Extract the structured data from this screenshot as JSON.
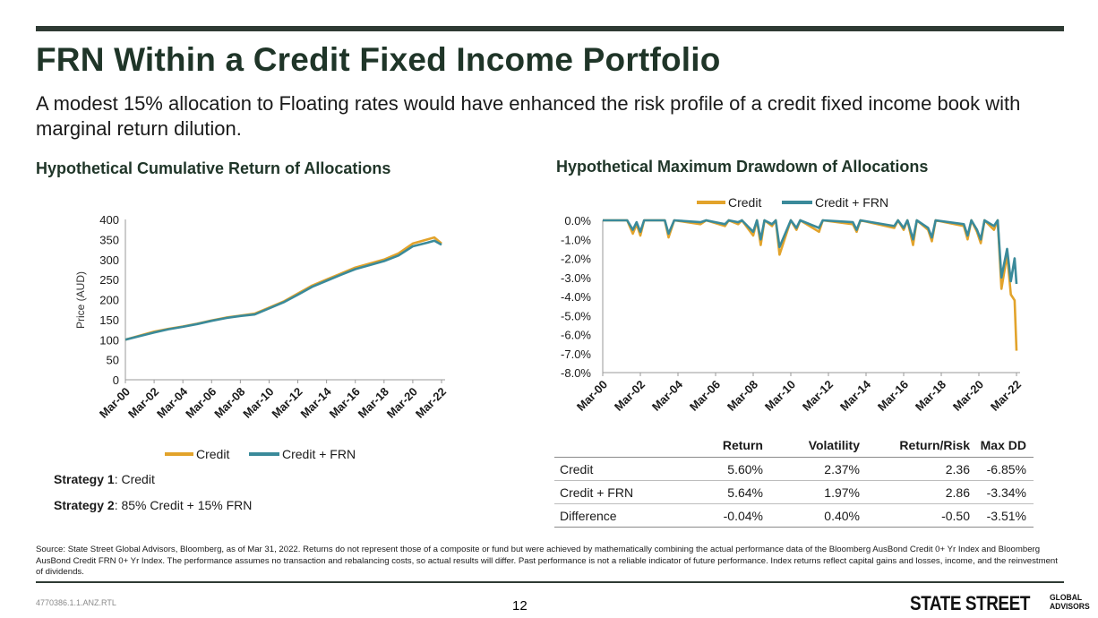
{
  "header": {
    "title": "FRN Within a Credit Fixed Income Portfolio",
    "subtitle": "A modest 15% allocation to Floating rates would have enhanced the risk profile of a credit fixed income book with marginal return dilution."
  },
  "colors": {
    "credit": "#e2a32b",
    "credit_frn": "#3a8a9a",
    "title": "#1f3528",
    "rule": "#2e3a33"
  },
  "chart_data": [
    {
      "type": "line",
      "title": "Hypothetical Cumulative Return of Allocations",
      "ylabel": "Price (AUD)",
      "xlabel": "",
      "ylim": [
        0,
        400
      ],
      "yticks": [
        0,
        50,
        100,
        150,
        200,
        250,
        300,
        350,
        400
      ],
      "xticks": [
        "Mar-00",
        "Mar-02",
        "Mar-04",
        "Mar-06",
        "Mar-08",
        "Mar-10",
        "Mar-12",
        "Mar-14",
        "Mar-16",
        "Mar-18",
        "Mar-20",
        "Mar-22"
      ],
      "legend": [
        "Credit",
        "Credit + FRN"
      ],
      "legend_position": "bottom",
      "grid": false,
      "series": [
        {
          "name": "Credit",
          "x": [
            2000,
            2001,
            2002,
            2003,
            2004,
            2005,
            2006,
            2007,
            2008,
            2009,
            2010,
            2011,
            2012,
            2013,
            2014,
            2015,
            2016,
            2017,
            2018,
            2019,
            2020,
            2021,
            2021.5,
            2022
          ],
          "values": [
            100,
            110,
            120,
            127,
            133,
            140,
            148,
            155,
            160,
            165,
            180,
            195,
            215,
            235,
            250,
            265,
            280,
            290,
            300,
            315,
            340,
            350,
            355,
            340
          ]
        },
        {
          "name": "Credit + FRN",
          "x": [
            2000,
            2001,
            2002,
            2003,
            2004,
            2005,
            2006,
            2007,
            2008,
            2009,
            2010,
            2011,
            2012,
            2013,
            2014,
            2015,
            2016,
            2017,
            2018,
            2019,
            2020,
            2021,
            2021.5,
            2022
          ],
          "values": [
            100,
            109,
            118,
            126,
            132,
            139,
            147,
            154,
            159,
            163,
            178,
            193,
            212,
            232,
            247,
            262,
            276,
            286,
            296,
            310,
            333,
            342,
            347,
            337
          ]
        }
      ]
    },
    {
      "type": "line",
      "title": "Hypothetical Maximum Drawdown of Allocations",
      "ylabel": "",
      "xlabel": "",
      "ylim": [
        -8.0,
        0.0
      ],
      "yticks": [
        "0.0%",
        "-1.0%",
        "-2.0%",
        "-3.0%",
        "-4.0%",
        "-5.0%",
        "-6.0%",
        "-7.0%",
        "-8.0%"
      ],
      "xticks": [
        "Mar-00",
        "Mar-02",
        "Mar-04",
        "Mar-06",
        "Mar-08",
        "Mar-10",
        "Mar-12",
        "Mar-14",
        "Mar-16",
        "Mar-18",
        "Mar-20",
        "Mar-22"
      ],
      "legend": [
        "Credit",
        "Credit + FRN"
      ],
      "legend_position": "top",
      "grid": false,
      "series": [
        {
          "name": "Credit",
          "x": [
            2000,
            2001.3,
            2001.6,
            2001.8,
            2002.0,
            2002.2,
            2003.3,
            2003.5,
            2003.8,
            2005.2,
            2005.5,
            2006.5,
            2006.7,
            2007.2,
            2007.4,
            2008.0,
            2008.2,
            2008.4,
            2008.6,
            2009.0,
            2009.2,
            2009.4,
            2010.0,
            2010.3,
            2010.5,
            2011.5,
            2011.7,
            2013.3,
            2013.5,
            2013.7,
            2015.5,
            2015.7,
            2016.0,
            2016.2,
            2016.5,
            2016.7,
            2017.3,
            2017.5,
            2017.7,
            2019.2,
            2019.4,
            2019.6,
            2019.9,
            2020.1,
            2020.3,
            2020.8,
            2021.0,
            2021.2,
            2021.5,
            2021.7,
            2021.9,
            2022.0
          ],
          "values": [
            0,
            0,
            -0.7,
            -0.2,
            -0.8,
            0,
            0,
            -0.9,
            0,
            -0.2,
            0,
            -0.3,
            0,
            -0.2,
            0,
            -0.8,
            0,
            -1.3,
            0,
            -0.3,
            0,
            -1.8,
            0,
            -0.5,
            0,
            -0.6,
            0,
            -0.2,
            -0.6,
            0,
            -0.4,
            0,
            -0.5,
            0,
            -1.3,
            0,
            -0.5,
            -1.1,
            0,
            -0.3,
            -1.0,
            0,
            -0.6,
            -1.2,
            0,
            -0.5,
            0,
            -3.6,
            -1.8,
            -3.9,
            -4.2,
            -6.85
          ]
        },
        {
          "name": "Credit + FRN",
          "x": [
            2000,
            2001.3,
            2001.6,
            2001.8,
            2002.0,
            2002.2,
            2003.3,
            2003.5,
            2003.8,
            2005.2,
            2005.5,
            2006.5,
            2006.7,
            2007.2,
            2007.4,
            2008.0,
            2008.2,
            2008.4,
            2008.6,
            2009.0,
            2009.2,
            2009.4,
            2010.0,
            2010.3,
            2010.5,
            2011.5,
            2011.7,
            2013.3,
            2013.5,
            2013.7,
            2015.5,
            2015.7,
            2016.0,
            2016.2,
            2016.5,
            2016.7,
            2017.3,
            2017.5,
            2017.7,
            2019.2,
            2019.4,
            2019.6,
            2019.9,
            2020.1,
            2020.3,
            2020.8,
            2021.0,
            2021.2,
            2021.5,
            2021.7,
            2021.9,
            2022.0
          ],
          "values": [
            0,
            0,
            -0.5,
            -0.1,
            -0.6,
            0,
            0,
            -0.7,
            0,
            -0.1,
            0,
            -0.2,
            0,
            -0.1,
            0,
            -0.6,
            0,
            -1.0,
            0,
            -0.2,
            0,
            -1.4,
            0,
            -0.4,
            0,
            -0.4,
            0,
            -0.1,
            -0.5,
            0,
            -0.3,
            0,
            -0.4,
            0,
            -1.0,
            0,
            -0.4,
            -0.9,
            0,
            -0.2,
            -0.8,
            0,
            -0.5,
            -1.0,
            0,
            -0.3,
            0,
            -3.0,
            -1.5,
            -3.2,
            -2.0,
            -3.34
          ]
        }
      ]
    }
  ],
  "strategies": [
    {
      "label": "Strategy 1",
      "text": ": Credit"
    },
    {
      "label": "Strategy 2",
      "text": ": 85% Credit + 15% FRN"
    }
  ],
  "table": {
    "headers": [
      "",
      "Return",
      "Volatility",
      "Return/Risk",
      "Max DD"
    ],
    "rows": [
      [
        "Credit",
        "5.60%",
        "2.37%",
        "2.36",
        "-6.85%"
      ],
      [
        "Credit + FRN",
        "5.64%",
        "1.97%",
        "2.86",
        "-3.34%"
      ],
      [
        "Difference",
        "-0.04%",
        "0.40%",
        "-0.50",
        "-3.51%"
      ]
    ]
  },
  "footer": {
    "source": "Source: State Street Global Advisors, Bloomberg, as of Mar 31, 2022. Returns do not represent those of a composite or fund but were achieved by mathematically combining the actual performance data of the Bloomberg AusBond Credit 0+ Yr Index and Bloomberg AusBond Credit FRN 0+ Yr Index. The performance assumes no transaction and rebalancing costs, so actual results will differ. Past performance is not a reliable indicator of future performance. Index returns reflect capital gains and losses, income, and the reinvestment of dividends.",
    "doc_id": "4770386.1.1.ANZ.RTL",
    "page_number": "12",
    "logo_main": "STATE STREET",
    "logo_sub_1": "GLOBAL",
    "logo_sub_2": "ADVISORS"
  }
}
